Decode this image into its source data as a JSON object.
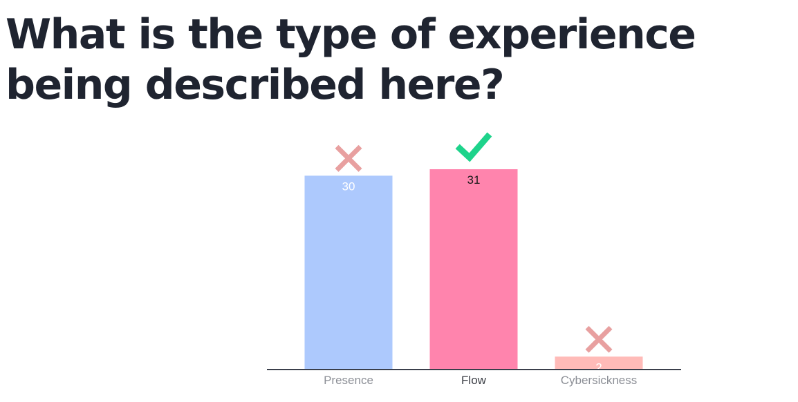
{
  "question": "What is the type of experience being described here?",
  "colors": {
    "title": "#1f2430",
    "axis": "#3a3f4b",
    "correct_mark": "#1ed38b",
    "incorrect_mark": "#e8a0a0",
    "category_label": "#8c8f96",
    "category_label_correct": "#3a3d44"
  },
  "chart_data": {
    "type": "bar",
    "title": "",
    "xlabel": "",
    "ylabel": "",
    "categories": [
      "Presence",
      "Flow",
      "Cybersickness"
    ],
    "values": [
      30,
      31,
      2
    ],
    "ylim": [
      0,
      31
    ],
    "grid": false,
    "legend": "none",
    "bar_colors": [
      "#adc9fd",
      "#ff84ad",
      "#ffbbb8"
    ],
    "value_label_colors": [
      "#ffffff",
      "#1a1a1a",
      "#ffffff"
    ],
    "marks": [
      "incorrect-icon",
      "correct-icon",
      "incorrect-icon"
    ]
  }
}
